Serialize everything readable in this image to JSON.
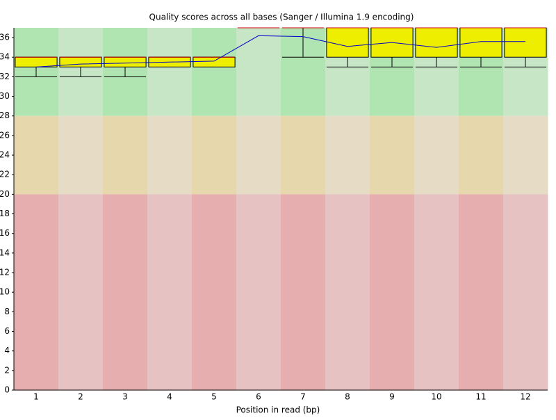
{
  "chart_data": {
    "type": "box",
    "title": "Quality scores across all bases (Sanger / Illumina 1.9 encoding)",
    "x_label": "Position in read (bp)",
    "categories": [
      "1",
      "2",
      "3",
      "4",
      "5",
      "6",
      "7",
      "8",
      "9",
      "10",
      "11",
      "12"
    ],
    "lower_whisker": [
      32,
      32,
      32,
      34,
      34,
      37,
      34,
      33,
      33,
      33,
      33,
      33
    ],
    "q1": [
      33,
      33,
      33,
      33,
      33,
      37,
      37,
      34,
      34,
      34,
      34,
      34
    ],
    "median": [
      34,
      34,
      34,
      34,
      34,
      37,
      37,
      37,
      37,
      37,
      37,
      37
    ],
    "q3": [
      34,
      34,
      34,
      34,
      34,
      37,
      37,
      37,
      37,
      37,
      37,
      37
    ],
    "upper_whisker": [
      34,
      34,
      34,
      34,
      34,
      37,
      37,
      37,
      37,
      37,
      37,
      37
    ],
    "mean": [
      33.0,
      33.3,
      33.4,
      33.5,
      33.6,
      36.2,
      36.1,
      35.1,
      35.5,
      35.0,
      35.6,
      35.6
    ],
    "box_color": "#eeee00",
    "median_color": "#cc0000",
    "mean_color": "#0000cc",
    "bands": [
      {
        "from": 28,
        "to": 37,
        "colors": [
          "#b0e4b0",
          "#c6e6c6"
        ]
      },
      {
        "from": 20,
        "to": 28,
        "colors": [
          "#e6d8ac",
          "#e6dcc6"
        ]
      },
      {
        "from": 0,
        "to": 20,
        "colors": [
          "#e6aeae",
          "#e6c2c2"
        ]
      }
    ],
    "ylim": [
      0,
      37
    ],
    "yticks": [
      0,
      2,
      4,
      6,
      8,
      10,
      12,
      14,
      16,
      18,
      20,
      22,
      24,
      26,
      28,
      30,
      32,
      34,
      36
    ]
  }
}
